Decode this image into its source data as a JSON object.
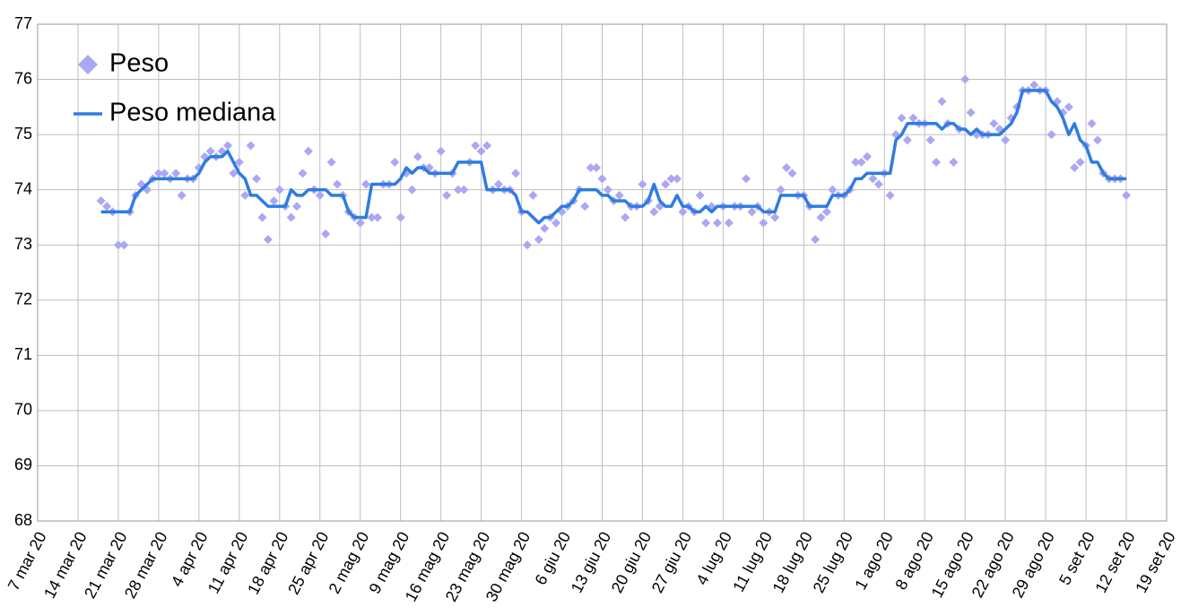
{
  "chart_data": {
    "type": "line",
    "x": [
      "2020-03-18",
      "2020-03-19",
      "2020-03-20",
      "2020-03-21",
      "2020-03-22",
      "2020-03-23",
      "2020-03-24",
      "2020-03-25",
      "2020-03-26",
      "2020-03-27",
      "2020-03-28",
      "2020-03-29",
      "2020-03-30",
      "2020-03-31",
      "2020-04-01",
      "2020-04-02",
      "2020-04-03",
      "2020-04-04",
      "2020-04-05",
      "2020-04-06",
      "2020-04-07",
      "2020-04-08",
      "2020-04-09",
      "2020-04-10",
      "2020-04-11",
      "2020-04-12",
      "2020-04-13",
      "2020-04-14",
      "2020-04-15",
      "2020-04-16",
      "2020-04-17",
      "2020-04-18",
      "2020-04-19",
      "2020-04-20",
      "2020-04-21",
      "2020-04-22",
      "2020-04-23",
      "2020-04-24",
      "2020-04-25",
      "2020-04-26",
      "2020-04-27",
      "2020-04-28",
      "2020-04-29",
      "2020-04-30",
      "2020-05-01",
      "2020-05-02",
      "2020-05-03",
      "2020-05-04",
      "2020-05-05",
      "2020-05-06",
      "2020-05-07",
      "2020-05-08",
      "2020-05-09",
      "2020-05-10",
      "2020-05-11",
      "2020-05-12",
      "2020-05-13",
      "2020-05-14",
      "2020-05-15",
      "2020-05-16",
      "2020-05-17",
      "2020-05-18",
      "2020-05-19",
      "2020-05-20",
      "2020-05-21",
      "2020-05-22",
      "2020-05-23",
      "2020-05-24",
      "2020-05-25",
      "2020-05-26",
      "2020-05-27",
      "2020-05-28",
      "2020-05-29",
      "2020-05-30",
      "2020-05-31",
      "2020-06-01",
      "2020-06-02",
      "2020-06-03",
      "2020-06-04",
      "2020-06-05",
      "2020-06-06",
      "2020-06-07",
      "2020-06-08",
      "2020-06-09",
      "2020-06-10",
      "2020-06-11",
      "2020-06-12",
      "2020-06-13",
      "2020-06-14",
      "2020-06-15",
      "2020-06-16",
      "2020-06-17",
      "2020-06-18",
      "2020-06-19",
      "2020-06-20",
      "2020-06-21",
      "2020-06-22",
      "2020-06-23",
      "2020-06-24",
      "2020-06-25",
      "2020-06-26",
      "2020-06-27",
      "2020-06-28",
      "2020-06-29",
      "2020-06-30",
      "2020-07-01",
      "2020-07-02",
      "2020-07-03",
      "2020-07-04",
      "2020-07-05",
      "2020-07-06",
      "2020-07-07",
      "2020-07-08",
      "2020-07-09",
      "2020-07-10",
      "2020-07-11",
      "2020-07-12",
      "2020-07-13",
      "2020-07-14",
      "2020-07-15",
      "2020-07-16",
      "2020-07-17",
      "2020-07-18",
      "2020-07-19",
      "2020-07-20",
      "2020-07-21",
      "2020-07-22",
      "2020-07-23",
      "2020-07-24",
      "2020-07-25",
      "2020-07-26",
      "2020-07-27",
      "2020-07-28",
      "2020-07-29",
      "2020-07-30",
      "2020-07-31",
      "2020-08-01",
      "2020-08-02",
      "2020-08-03",
      "2020-08-04",
      "2020-08-05",
      "2020-08-06",
      "2020-08-07",
      "2020-08-08",
      "2020-08-09",
      "2020-08-10",
      "2020-08-11",
      "2020-08-12",
      "2020-08-13",
      "2020-08-14",
      "2020-08-15",
      "2020-08-16",
      "2020-08-17",
      "2020-08-18",
      "2020-08-19",
      "2020-08-20",
      "2020-08-21",
      "2020-08-22",
      "2020-08-23",
      "2020-08-24",
      "2020-08-25",
      "2020-08-26",
      "2020-08-27",
      "2020-08-28",
      "2020-08-29",
      "2020-08-30",
      "2020-08-31",
      "2020-09-01",
      "2020-09-02",
      "2020-09-03",
      "2020-09-04",
      "2020-09-05",
      "2020-09-06",
      "2020-09-07",
      "2020-09-08",
      "2020-09-09",
      "2020-09-10",
      "2020-09-11",
      "2020-09-12"
    ],
    "series": [
      {
        "name": "Peso",
        "type": "scatter",
        "color": "#aaa8f2",
        "values": [
          73.8,
          73.7,
          73.6,
          73.0,
          73.0,
          73.6,
          73.9,
          74.1,
          74.0,
          74.2,
          74.3,
          74.3,
          74.2,
          74.3,
          73.9,
          74.2,
          74.2,
          74.4,
          74.6,
          74.7,
          74.6,
          74.7,
          74.8,
          74.3,
          74.5,
          73.9,
          74.8,
          74.2,
          73.5,
          73.1,
          73.8,
          74.0,
          73.7,
          73.5,
          73.7,
          74.3,
          74.7,
          74.0,
          73.9,
          73.2,
          74.5,
          74.1,
          73.9,
          73.6,
          73.5,
          73.4,
          74.1,
          73.5,
          73.5,
          74.1,
          74.1,
          74.5,
          73.5,
          74.3,
          74.0,
          74.6,
          74.4,
          74.4,
          74.3,
          74.7,
          73.9,
          74.3,
          74.0,
          74.0,
          74.5,
          74.8,
          74.7,
          74.8,
          74.0,
          74.1,
          74.0,
          74.0,
          74.3,
          73.6,
          73.0,
          73.9,
          73.1,
          73.3,
          73.5,
          73.4,
          73.6,
          73.7,
          73.8,
          74.0,
          73.7,
          74.4,
          74.4,
          74.2,
          74.0,
          73.8,
          73.9,
          73.5,
          73.7,
          73.7,
          74.1,
          73.8,
          73.6,
          73.7,
          74.1,
          74.2,
          74.2,
          73.6,
          73.7,
          73.6,
          73.9,
          73.4,
          73.7,
          73.4,
          73.7,
          73.4,
          73.7,
          73.7,
          74.2,
          73.6,
          73.7,
          73.4,
          73.6,
          73.5,
          74.0,
          74.4,
          74.3,
          73.9,
          73.9,
          73.7,
          73.1,
          73.5,
          73.6,
          74.0,
          73.9,
          73.9,
          74.0,
          74.5,
          74.5,
          74.6,
          74.2,
          74.1,
          74.3,
          73.9,
          75.0,
          75.3,
          74.9,
          75.3,
          75.2,
          75.2,
          74.9,
          74.5,
          75.6,
          75.2,
          74.5,
          75.1,
          76.0,
          75.4,
          75.0,
          75.0,
          75.0,
          75.2,
          75.1,
          74.9,
          75.3,
          75.5,
          75.8,
          75.8,
          75.9,
          75.8,
          75.8,
          75.0,
          75.6,
          75.4,
          75.5,
          74.4,
          74.5,
          74.8,
          75.2,
          74.9,
          74.3,
          74.2,
          74.2,
          74.2,
          73.9
        ]
      },
      {
        "name": "Peso mediana",
        "type": "line",
        "color": "#2e7ce2",
        "values": [
          73.6,
          73.6,
          73.6,
          73.6,
          73.6,
          73.6,
          73.9,
          74.0,
          74.1,
          74.2,
          74.2,
          74.2,
          74.2,
          74.2,
          74.2,
          74.2,
          74.2,
          74.3,
          74.5,
          74.6,
          74.6,
          74.6,
          74.7,
          74.5,
          74.3,
          74.2,
          73.9,
          73.9,
          73.8,
          73.7,
          73.7,
          73.7,
          73.7,
          74.0,
          73.9,
          73.9,
          74.0,
          74.0,
          74.0,
          74.0,
          73.9,
          73.9,
          73.9,
          73.6,
          73.5,
          73.5,
          73.5,
          74.1,
          74.1,
          74.1,
          74.1,
          74.1,
          74.2,
          74.4,
          74.3,
          74.4,
          74.4,
          74.3,
          74.3,
          74.3,
          74.3,
          74.3,
          74.5,
          74.5,
          74.5,
          74.5,
          74.5,
          74.0,
          74.0,
          74.0,
          74.0,
          74.0,
          73.9,
          73.6,
          73.6,
          73.5,
          73.4,
          73.5,
          73.5,
          73.6,
          73.7,
          73.7,
          73.8,
          74.0,
          74.0,
          74.0,
          74.0,
          73.9,
          73.9,
          73.8,
          73.8,
          73.8,
          73.7,
          73.7,
          73.7,
          73.8,
          74.1,
          73.8,
          73.7,
          73.7,
          73.9,
          73.7,
          73.7,
          73.6,
          73.6,
          73.7,
          73.6,
          73.7,
          73.7,
          73.7,
          73.7,
          73.7,
          73.7,
          73.7,
          73.7,
          73.6,
          73.6,
          73.6,
          73.9,
          73.9,
          73.9,
          73.9,
          73.9,
          73.7,
          73.7,
          73.7,
          73.7,
          73.9,
          73.9,
          73.9,
          74.0,
          74.2,
          74.2,
          74.3,
          74.3,
          74.3,
          74.3,
          74.3,
          74.9,
          75.0,
          75.2,
          75.2,
          75.2,
          75.2,
          75.2,
          75.2,
          75.1,
          75.2,
          75.2,
          75.1,
          75.1,
          75.0,
          75.1,
          75.0,
          75.0,
          75.0,
          75.0,
          75.1,
          75.2,
          75.4,
          75.8,
          75.8,
          75.8,
          75.8,
          75.8,
          75.6,
          75.5,
          75.3,
          75.0,
          75.2,
          74.9,
          74.8,
          74.5,
          74.5,
          74.3,
          74.2,
          74.2,
          74.2,
          74.2
        ]
      }
    ],
    "xlim": [
      "2020-03-07",
      "2020-09-19"
    ],
    "xticks": [
      {
        "value": "2020-03-07",
        "label": "7 mar 20"
      },
      {
        "value": "2020-03-14",
        "label": "14 mar 20"
      },
      {
        "value": "2020-03-21",
        "label": "21 mar 20"
      },
      {
        "value": "2020-03-28",
        "label": "28 mar 20"
      },
      {
        "value": "2020-04-04",
        "label": "4 apr 20"
      },
      {
        "value": "2020-04-11",
        "label": "11 apr 20"
      },
      {
        "value": "2020-04-18",
        "label": "18 apr 20"
      },
      {
        "value": "2020-04-25",
        "label": "25 apr 20"
      },
      {
        "value": "2020-05-02",
        "label": "2 mag 20"
      },
      {
        "value": "2020-05-09",
        "label": "9 mag 20"
      },
      {
        "value": "2020-05-16",
        "label": "16 mag 20"
      },
      {
        "value": "2020-05-23",
        "label": "23 mag 20"
      },
      {
        "value": "2020-05-30",
        "label": "30 mag 20"
      },
      {
        "value": "2020-06-06",
        "label": "6 giu 20"
      },
      {
        "value": "2020-06-13",
        "label": "13 giu 20"
      },
      {
        "value": "2020-06-20",
        "label": "20 giu 20"
      },
      {
        "value": "2020-06-27",
        "label": "27 giu 20"
      },
      {
        "value": "2020-07-04",
        "label": "4 lug 20"
      },
      {
        "value": "2020-07-11",
        "label": "11 lug 20"
      },
      {
        "value": "2020-07-18",
        "label": "18 lug 20"
      },
      {
        "value": "2020-07-25",
        "label": "25 lug 20"
      },
      {
        "value": "2020-08-01",
        "label": "1 ago 20"
      },
      {
        "value": "2020-08-08",
        "label": "8 ago 20"
      },
      {
        "value": "2020-08-15",
        "label": "15 ago 20"
      },
      {
        "value": "2020-08-22",
        "label": "22 ago 20"
      },
      {
        "value": "2020-08-29",
        "label": "29 ago 20"
      },
      {
        "value": "2020-09-05",
        "label": "5 set 20"
      },
      {
        "value": "2020-09-12",
        "label": "12 set 20"
      },
      {
        "value": "2020-09-19",
        "label": "19 set 20"
      }
    ],
    "ylim": [
      68,
      77
    ],
    "yticks": [
      68,
      69,
      70,
      71,
      72,
      73,
      74,
      75,
      76,
      77
    ],
    "grid": true,
    "legend": "top-left"
  }
}
